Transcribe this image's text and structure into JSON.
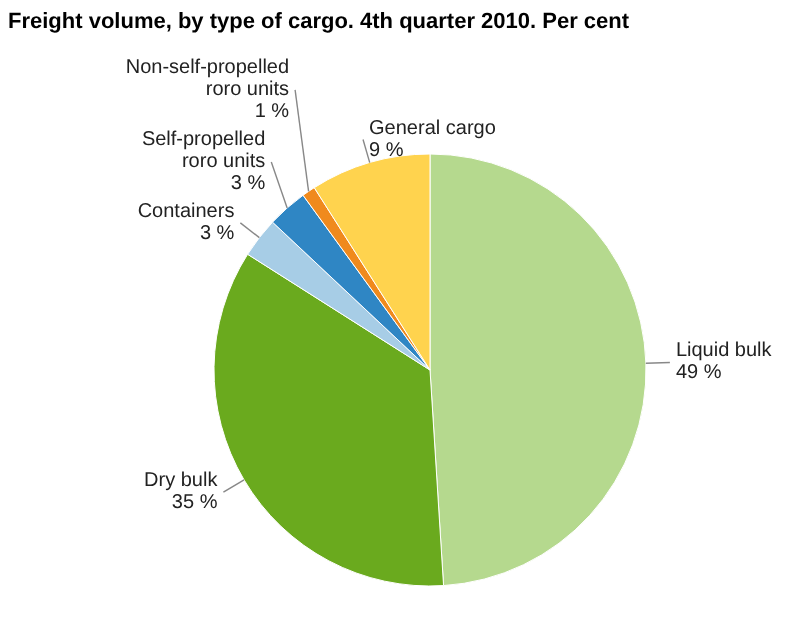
{
  "chart_data": {
    "type": "pie",
    "title": "Freight volume, by type of cargo. 4th quarter 2010. Per cent",
    "categories": [
      "Liquid bulk",
      "Dry bulk",
      "Containers",
      "Self-propelled roro units",
      "Non-self-propelled roro units",
      "General cargo"
    ],
    "values": [
      49,
      35,
      3,
      3,
      1,
      9
    ],
    "colors": [
      "#b5d98e",
      "#6aaa1e",
      "#a7cde6",
      "#2f86c4",
      "#f08a1d",
      "#ffd34e"
    ],
    "value_labels": [
      "49 %",
      "35 %",
      "3 %",
      "3 %",
      "1 %",
      "9 %"
    ],
    "legend": false
  }
}
